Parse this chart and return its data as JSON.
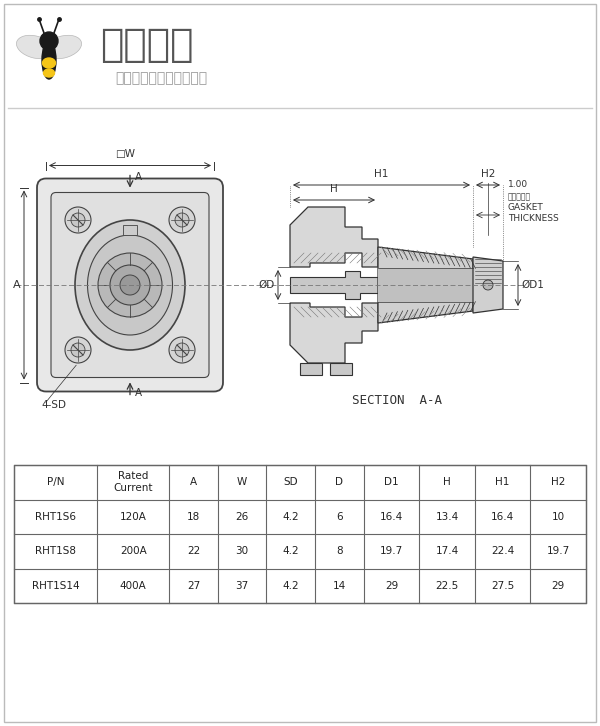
{
  "bg_color": "#ffffff",
  "header_text1": "电蜂优选",
  "header_text2": "原厂直采电子连接器商城",
  "table_headers": [
    "P/N",
    "Rated\nCurrent",
    "A",
    "W",
    "SD",
    "D",
    "D1",
    "H",
    "H1",
    "H2"
  ],
  "table_rows": [
    [
      "RHT1S6",
      "120A",
      "18",
      "26",
      "4.2",
      "6",
      "16.4",
      "13.4",
      "16.4",
      "10"
    ],
    [
      "RHT1S8",
      "200A",
      "22",
      "30",
      "4.2",
      "8",
      "19.7",
      "17.4",
      "22.4",
      "19.7"
    ],
    [
      "RHT1S14",
      "400A",
      "27",
      "37",
      "4.2",
      "14",
      "29",
      "22.5",
      "27.5",
      "29"
    ]
  ],
  "section_label": "SECTION  A-A",
  "table_border_color": "#666666",
  "drawing_line_color": "#444444"
}
